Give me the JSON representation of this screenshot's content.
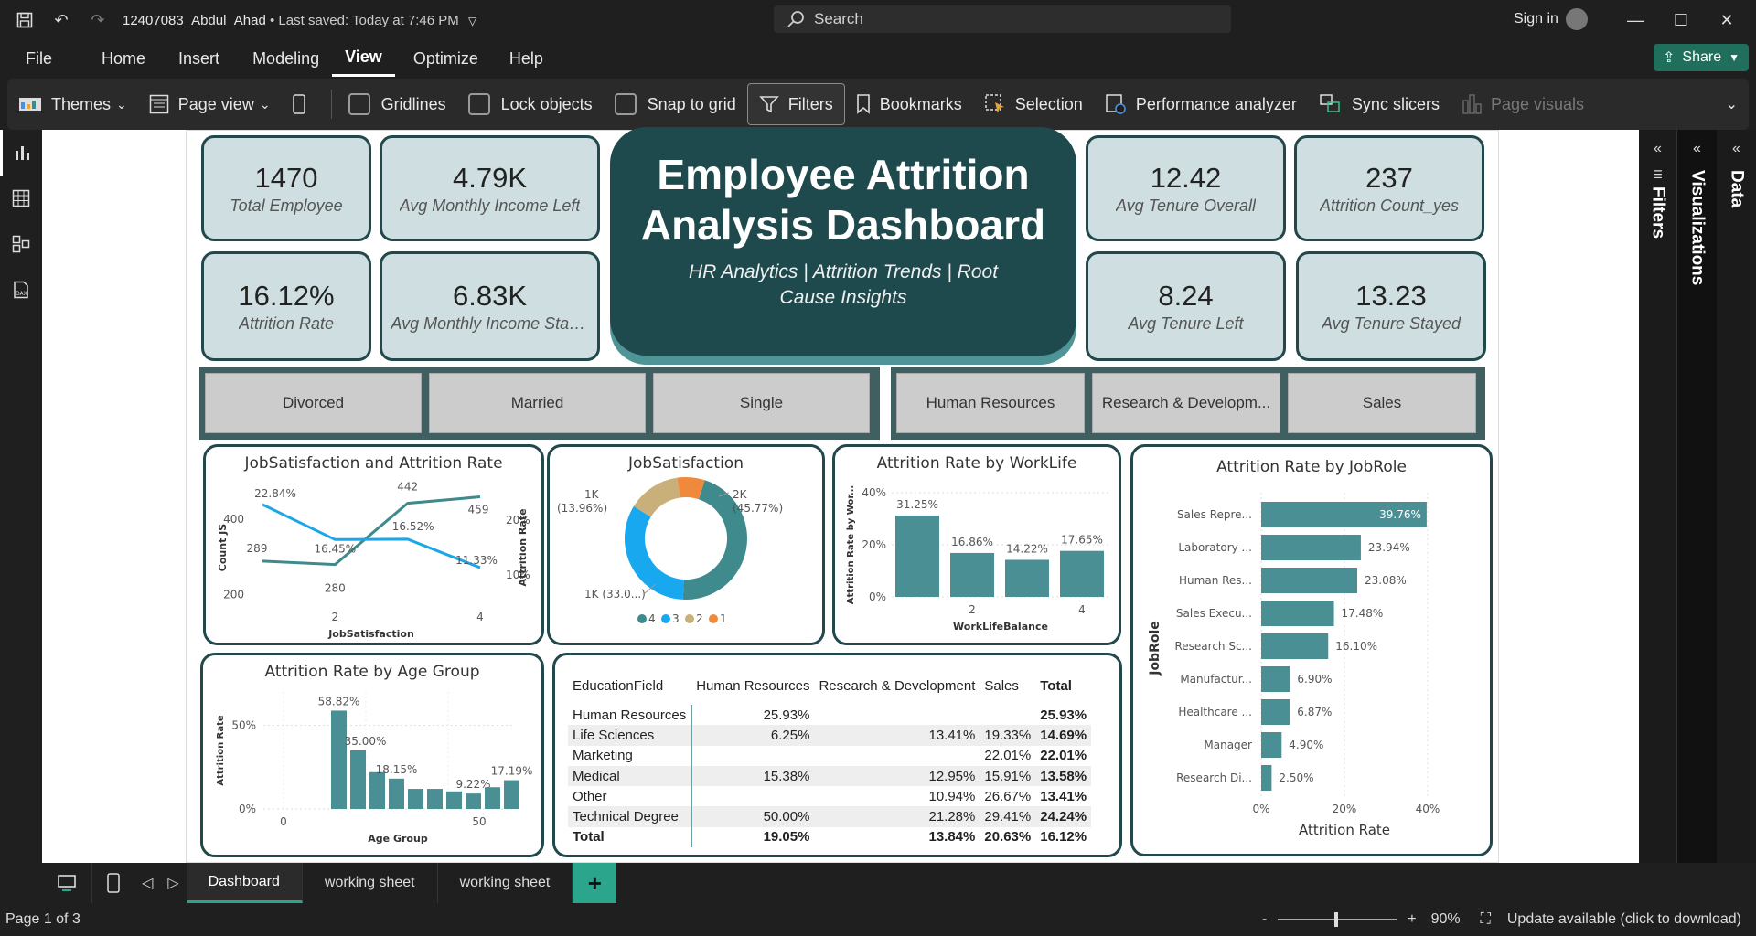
{
  "app": {
    "doc_title": "12407083_Abdul_Ahad",
    "saved_status": "• Last saved: Today at 7:46 PM",
    "search_placeholder": "Search",
    "signin": "Sign in",
    "share": "Share"
  },
  "menu": [
    "File",
    "Home",
    "Insert",
    "Modeling",
    "View",
    "Optimize",
    "Help"
  ],
  "ribbon": {
    "themes": "Themes",
    "page_view": "Page view",
    "gridlines": "Gridlines",
    "lock_objects": "Lock objects",
    "snap_to_grid": "Snap to grid",
    "filters": "Filters",
    "bookmarks": "Bookmarks",
    "selection": "Selection",
    "performance_analyzer": "Performance analyzer",
    "sync_slicers": "Sync slicers",
    "page_visuals": "Page visuals"
  },
  "panes": {
    "filters": "Filters",
    "visualizations": "Visualizations",
    "data": "Data"
  },
  "kpis": {
    "total_employee": {
      "value": "1470",
      "label": "Total Employee"
    },
    "avg_income_left": {
      "value": "4.79K",
      "label": "Avg Monthly Income Left"
    },
    "attrition_rate": {
      "value": "16.12%",
      "label": "Attrition Rate"
    },
    "avg_income_stay": {
      "value": "6.83K",
      "label": "Avg Monthly Income Stay..."
    },
    "avg_tenure_overall": {
      "value": "12.42",
      "label": "Avg Tenure Overall"
    },
    "attrition_count": {
      "value": "237",
      "label": "Attrition Count_yes"
    },
    "avg_tenure_left": {
      "value": "8.24",
      "label": "Avg Tenure Left"
    },
    "avg_tenure_stayed": {
      "value": "13.23",
      "label": "Avg Tenure Stayed"
    }
  },
  "header_card": {
    "title": "Employee Attrition Analysis Dashboard",
    "subtitle": "HR Analytics | Attrition Trends | Root Cause Insights"
  },
  "slicers": {
    "marital": [
      "Divorced",
      "Married",
      "Single"
    ],
    "department": [
      "Human Resources",
      "Research & Developm...",
      "Sales"
    ]
  },
  "chart_data": [
    {
      "type": "line",
      "title": "JobSatisfaction and Attrition Rate",
      "xlabel": "JobSatisfaction",
      "ylabel": "Count JS",
      "y2label": "Attrition Rate",
      "x": [
        1,
        2,
        3,
        4
      ],
      "x_ticks": [
        "2",
        "4"
      ],
      "ylim": [
        180,
        470
      ],
      "y_ticks": [
        "200",
        "400"
      ],
      "y2lim": [
        5,
        25
      ],
      "y2_ticks": [
        "10%",
        "20%"
      ],
      "series": [
        {
          "axis": "left",
          "values": [
            289,
            280,
            442,
            459
          ],
          "labels": [
            "289",
            "280",
            "442",
            "459"
          ],
          "color": "#3f8a8c"
        },
        {
          "axis": "right",
          "values": [
            22.84,
            16.45,
            16.52,
            11.33
          ],
          "labels": [
            "22.84%",
            "16.45%",
            "16.52%",
            "11.33%"
          ],
          "color": "#1aa6e8"
        }
      ]
    },
    {
      "type": "pie",
      "title": "JobSatisfaction",
      "slices": [
        {
          "name": "4",
          "value": 45.77,
          "label": "2K\n(45.77%)",
          "color": "#3f8a8c"
        },
        {
          "name": "3",
          "value": 33.0,
          "label": "1K (33.0...)",
          "color": "#18a8f0"
        },
        {
          "name": "2",
          "value": 13.96,
          "label": "1K\n(13.96%)",
          "color": "#c9b07a"
        },
        {
          "name": "1",
          "value": 7.27,
          "label": "",
          "color": "#ef8a3c"
        }
      ],
      "legend": [
        "4",
        "3",
        "2",
        "1"
      ]
    },
    {
      "type": "bar",
      "title": "Attrition Rate by WorkLife",
      "xlabel": "WorkLifeBalance",
      "ylabel": "Attrition Rate by Wor...",
      "categories": [
        1,
        2,
        3,
        4
      ],
      "x_ticks": [
        "2",
        "4"
      ],
      "values": [
        31.25,
        16.86,
        14.22,
        17.65
      ],
      "labels": [
        "31.25%",
        "16.86%",
        "14.22%",
        "17.65%"
      ],
      "ylim": [
        0,
        40
      ],
      "y_ticks": [
        "0%",
        "20%",
        "40%"
      ]
    },
    {
      "type": "bar",
      "orientation": "horizontal",
      "title": "Attrition Rate by JobRole",
      "xlabel": "Attrition Rate",
      "ylabel": "JobRole",
      "categories": [
        "Sales Repre...",
        "Laboratory ...",
        "Human Res...",
        "Sales Execu...",
        "Research Sc...",
        "Manufactur...",
        "Healthcare ...",
        "Manager",
        "Research Di..."
      ],
      "values": [
        39.76,
        23.94,
        23.08,
        17.48,
        16.1,
        6.9,
        6.87,
        4.9,
        2.5
      ],
      "labels": [
        "39.76%",
        "23.94%",
        "23.08%",
        "17.48%",
        "16.10%",
        "6.90%",
        "6.87%",
        "4.90%",
        "2.50%"
      ],
      "xlim": [
        0,
        40
      ],
      "x_ticks": [
        "0%",
        "20%",
        "40%"
      ]
    },
    {
      "type": "bar",
      "title": "Attrition Rate by Age Group",
      "xlabel": "Age Group",
      "ylabel": "Attrition Rate",
      "x_ticks": [
        "0",
        "50"
      ],
      "values": [
        58.82,
        35.0,
        22.0,
        18.15,
        12.0,
        12.0,
        10.5,
        9.22,
        13.0,
        17.19
      ],
      "labels": [
        "58.82%",
        "35.00%",
        "",
        "18.15%",
        "",
        "",
        "",
        "9.22%",
        "",
        "17.19%"
      ],
      "ylim": [
        0,
        70
      ],
      "y_ticks": [
        "0%",
        "50%"
      ]
    },
    {
      "type": "table",
      "columns": [
        "EducationField",
        "Human Resources",
        "Research & Development",
        "Sales",
        "Total"
      ],
      "rows": [
        [
          "Human Resources",
          "25.93%",
          "",
          "",
          "25.93%"
        ],
        [
          "Life Sciences",
          "6.25%",
          "13.41%",
          "19.33%",
          "14.69%"
        ],
        [
          "Marketing",
          "",
          "",
          "22.01%",
          "22.01%"
        ],
        [
          "Medical",
          "15.38%",
          "12.95%",
          "15.91%",
          "13.58%"
        ],
        [
          "Other",
          "",
          "10.94%",
          "26.67%",
          "13.41%"
        ],
        [
          "Technical Degree",
          "50.00%",
          "21.28%",
          "29.41%",
          "24.24%"
        ]
      ],
      "total": [
        "Total",
        "19.05%",
        "13.84%",
        "20.63%",
        "16.12%"
      ]
    }
  ],
  "tabs": [
    "Dashboard",
    "working sheet",
    "working sheet"
  ],
  "status": {
    "page": "Page 1 of 3",
    "zoom": "90%",
    "update": "Update available (click to download)"
  }
}
